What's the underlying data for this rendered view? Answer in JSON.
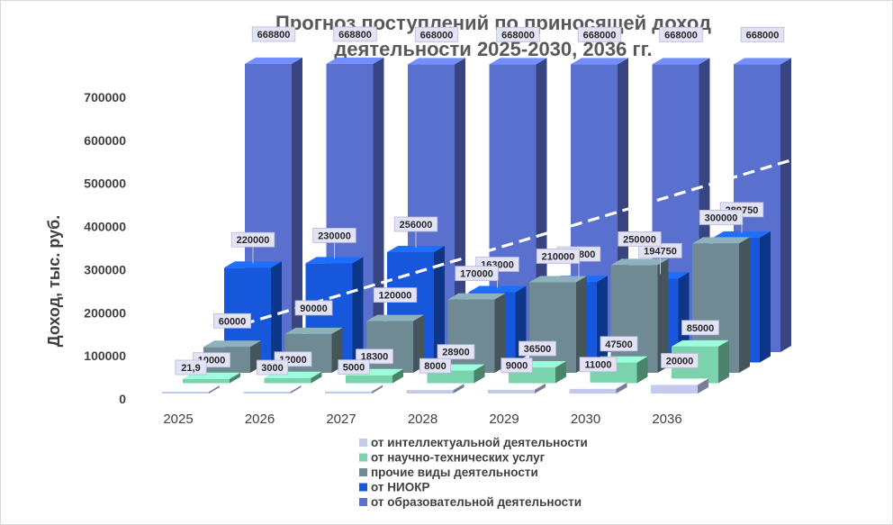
{
  "chart_data": {
    "type": "bar",
    "title_line1": "Прогноз поступлений по приносящей доход",
    "title_line2": "деятельности 2025-2030, 2036 гг.",
    "ylabel": "Доход, тыс. руб.",
    "ylim": [
      0,
      700000
    ],
    "yticks": [
      "0",
      "100000",
      "200000",
      "300000",
      "400000",
      "500000",
      "600000",
      "700000"
    ],
    "categories": [
      "2025",
      "2026",
      "2027",
      "2028",
      "2029",
      "2030",
      "2036"
    ],
    "legend_position": "bottom",
    "series": [
      {
        "name": "от интеллектуальной деятельности",
        "color": "#c5c9f0",
        "values": [
          21.9,
          3000,
          5000,
          8000,
          9000,
          11000,
          20000
        ],
        "labels": [
          "21,9",
          "3000",
          "5000",
          "8000",
          "9000",
          "11000",
          "20000"
        ]
      },
      {
        "name": "от научно-технических услуг",
        "color": "#7ad3ac",
        "values": [
          10000,
          12000,
          18300,
          28900,
          36500,
          47500,
          85000
        ],
        "labels": [
          "10000",
          "12000",
          "18300",
          "28900",
          "36500",
          "47500",
          "85000"
        ]
      },
      {
        "name": "прочие виды деятельности",
        "color": "#6f8a92",
        "values": [
          60000,
          90000,
          120000,
          170000,
          210000,
          250000,
          300000
        ],
        "labels": [
          "60000",
          "90000",
          "120000",
          "170000",
          "210000",
          "250000",
          "300000"
        ]
      },
      {
        "name": "от НИОКР",
        "color": "#1657dc",
        "values": [
          220000,
          230000,
          256000,
          163000,
          186800,
          194750,
          289750
        ],
        "labels": [
          "220000",
          "230000",
          "256000",
          "163000",
          "186800",
          "194750",
          "289750"
        ]
      },
      {
        "name": "от образовательной  деятельности",
        "color": "#5a70cf",
        "values": [
          668800,
          668800,
          668000,
          668000,
          668000,
          668000,
          668000
        ],
        "labels": [
          "668800",
          "668800",
          "668000",
          "668000",
          "668000",
          "668000",
          "668000"
        ]
      }
    ]
  }
}
